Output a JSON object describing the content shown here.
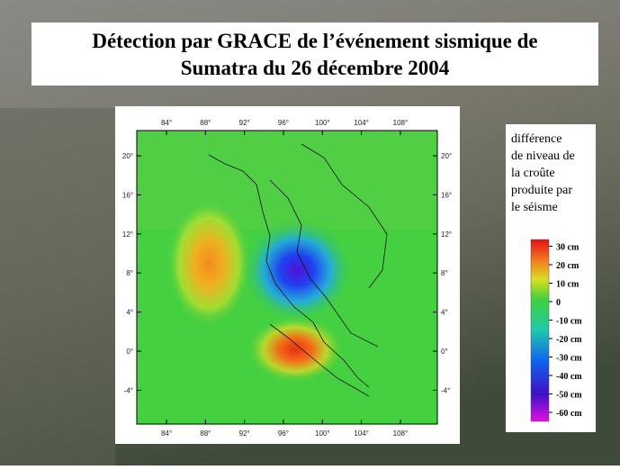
{
  "header": {
    "title": [
      "Détection par GRACE de l’événement sismique de",
      "Sumatra du 26 décembre 2004"
    ]
  },
  "map": {
    "lon_ticks": [
      {
        "value": 84,
        "label": "84°"
      },
      {
        "value": 88,
        "label": "88°"
      },
      {
        "value": 92,
        "label": "92°"
      },
      {
        "value": 96,
        "label": "96°"
      },
      {
        "value": 100,
        "label": "100°"
      },
      {
        "value": 104,
        "label": "104°"
      },
      {
        "value": 108,
        "label": "108°"
      }
    ],
    "lat_ticks": [
      {
        "value": 20,
        "label": "20°"
      },
      {
        "value": 16,
        "label": "16°"
      },
      {
        "value": 12,
        "label": "12°"
      },
      {
        "value": 8,
        "label": "8°"
      },
      {
        "value": 4,
        "label": "4°"
      },
      {
        "value": 0,
        "label": "0°"
      },
      {
        "value": -4,
        "label": "-4°"
      }
    ]
  },
  "legend": {
    "lines": [
      "différence",
      "de niveau de",
      "la croûte",
      "produite par",
      "le séisme"
    ],
    "scale": [
      {
        "value": 30,
        "label": "30 cm"
      },
      {
        "value": 20,
        "label": "20 cm"
      },
      {
        "value": 10,
        "label": "10 cm"
      },
      0,
      {
        "value": -10,
        "label": "-10 cm"
      },
      {
        "value": -20,
        "label": "-20 cm"
      },
      {
        "value": -30,
        "label": "-30 cm"
      },
      {
        "value": -40,
        "label": "-40 cm"
      },
      {
        "value": -50,
        "label": "-50 cm"
      },
      {
        "value": -60,
        "label": "-60 cm"
      }
    ]
  }
}
